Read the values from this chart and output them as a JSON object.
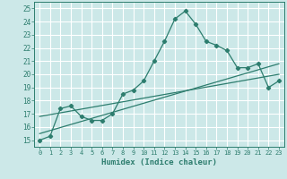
{
  "title": "",
  "xlabel": "Humidex (Indice chaleur)",
  "xlim": [
    -0.5,
    23.5
  ],
  "ylim": [
    14.5,
    25.5
  ],
  "xticks": [
    0,
    1,
    2,
    3,
    4,
    5,
    6,
    7,
    8,
    9,
    10,
    11,
    12,
    13,
    14,
    15,
    16,
    17,
    18,
    19,
    20,
    21,
    22,
    23
  ],
  "yticks": [
    15,
    16,
    17,
    18,
    19,
    20,
    21,
    22,
    23,
    24,
    25
  ],
  "bg_color": "#cce8e8",
  "grid_color": "#ffffff",
  "line_color": "#2d7d6e",
  "main_line": {
    "x": [
      0,
      1,
      2,
      3,
      4,
      5,
      6,
      7,
      8,
      9,
      10,
      11,
      12,
      13,
      14,
      15,
      16,
      17,
      18,
      19,
      20,
      21,
      22,
      23
    ],
    "y": [
      15.0,
      15.3,
      17.4,
      17.6,
      16.8,
      16.5,
      16.5,
      17.0,
      18.5,
      18.8,
      19.5,
      21.0,
      22.5,
      24.2,
      24.8,
      23.8,
      22.5,
      22.2,
      21.8,
      20.5,
      20.5,
      20.8,
      19.0,
      19.5
    ]
  },
  "trend_line1": {
    "x": [
      0,
      23
    ],
    "y": [
      15.5,
      20.8
    ]
  },
  "trend_line2": {
    "x": [
      0,
      23
    ],
    "y": [
      16.8,
      20.0
    ]
  }
}
